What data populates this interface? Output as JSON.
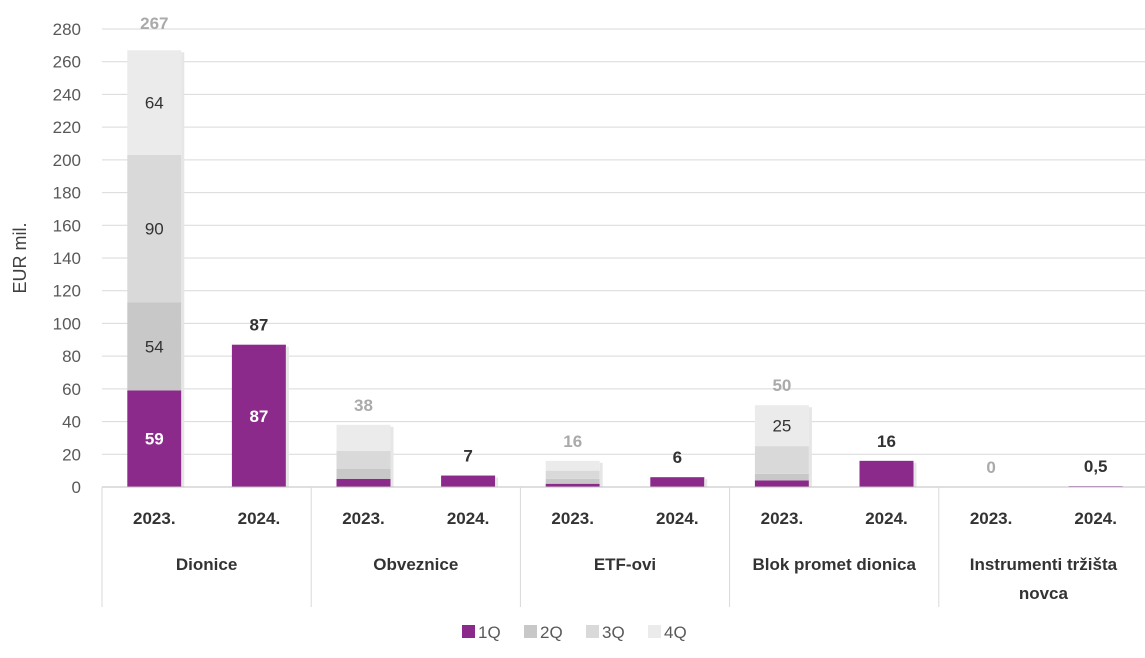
{
  "chart_data": {
    "type": "bar",
    "stacked": true,
    "ylabel": "EUR mil.",
    "ylim": [
      0,
      280
    ],
    "ytick_step": 20,
    "grid": true,
    "legend_position": "bottom",
    "groups": [
      "Dionice",
      "Obveznice",
      "ETF-ovi",
      "Blok promet dionica",
      "Instrumenti tržišta novca"
    ],
    "years": [
      "2023.",
      "2024."
    ],
    "categories": [
      "Dionice 2023.",
      "Dionice 2024.",
      "Obveznice 2023.",
      "Obveznice 2024.",
      "ETF-ovi 2023.",
      "ETF-ovi 2024.",
      "Blok promet dionica 2023.",
      "Blok promet dionica 2024.",
      "Instrumenti tržišta novca 2023.",
      "Instrumenti tržišta novca 2024."
    ],
    "series": [
      {
        "name": "1Q",
        "color": "#8B2A8B",
        "values": [
          59,
          87,
          5,
          7,
          2,
          6,
          4,
          16,
          0,
          0.5
        ]
      },
      {
        "name": "2Q",
        "color": "#C8C8C8",
        "values": [
          54,
          0,
          6,
          0,
          3,
          0,
          4,
          0,
          0,
          0
        ]
      },
      {
        "name": "3Q",
        "color": "#D9D9D9",
        "values": [
          90,
          0,
          11,
          0,
          5,
          0,
          17,
          0,
          0,
          0
        ]
      },
      {
        "name": "4Q",
        "color": "#EBEBEB",
        "values": [
          64,
          0,
          16,
          0,
          6,
          0,
          25,
          0,
          0,
          0
        ]
      }
    ],
    "segment_labels": [
      {
        "bar": 0,
        "series": 0,
        "text": "59"
      },
      {
        "bar": 0,
        "series": 1,
        "text": "54"
      },
      {
        "bar": 0,
        "series": 2,
        "text": "90"
      },
      {
        "bar": 0,
        "series": 3,
        "text": "64"
      },
      {
        "bar": 1,
        "series": 0,
        "text": "87"
      },
      {
        "bar": 6,
        "series": 3,
        "text": "25"
      }
    ],
    "total_labels": [
      "267",
      "87",
      "38",
      "7",
      "16",
      "6",
      "50",
      "16",
      "0",
      "0,5"
    ],
    "total_label_colors": {
      "2023.": "#AAAAAA",
      "2024.": "#333333"
    }
  }
}
